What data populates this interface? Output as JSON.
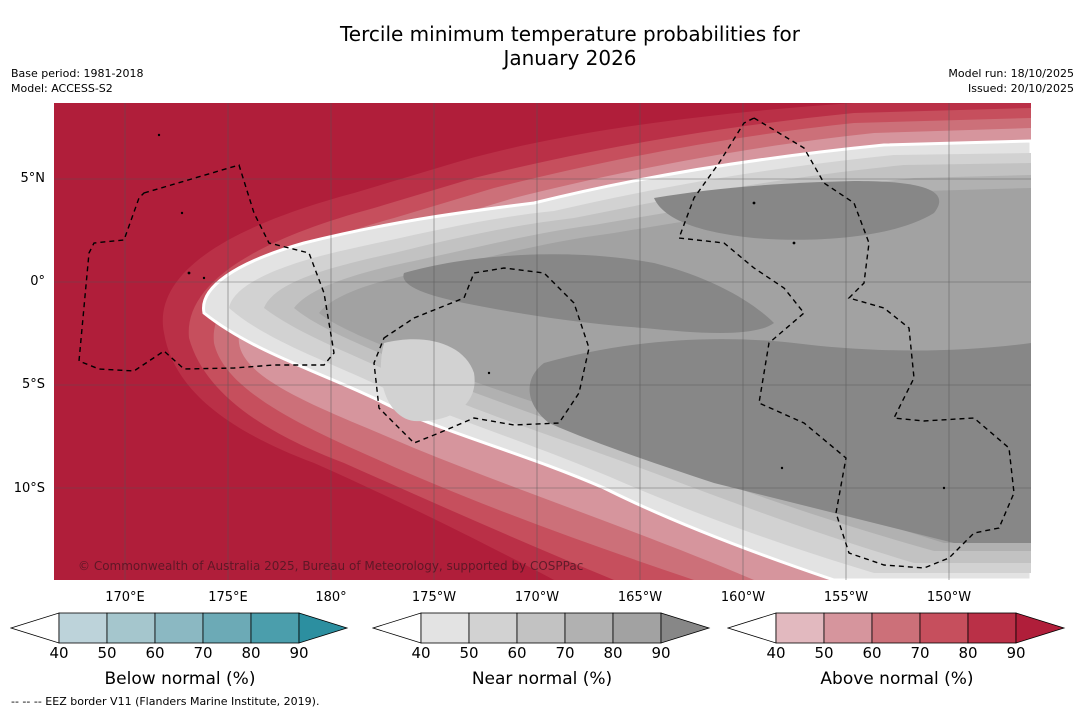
{
  "header": {
    "title_line1": "Tercile minimum temperature probabilities for",
    "title_line2": "January 2026",
    "base_period": "Base period: 1981-2018",
    "model": "Model: ACCESS-S2",
    "model_run": "Model run: 18/10/2025",
    "issued": "Issued: 20/10/2025"
  },
  "map": {
    "copyright": "© Commonwealth of Australia 2025, Bureau of Meteorology, supported by COSPPac",
    "lat_labels": [
      "5°N",
      "0°",
      "5°S",
      "10°S"
    ],
    "lon_labels": [
      "170°E",
      "175°E",
      "180°",
      "175°W",
      "170°W",
      "165°W",
      "160°W",
      "155°W",
      "150°W"
    ]
  },
  "colorbars": [
    {
      "title": "Below normal (%)",
      "ticks": [
        "40",
        "50",
        "60",
        "70",
        "80",
        "90"
      ],
      "colors": [
        "#ffffff",
        "#bdd3da",
        "#a5c6cd",
        "#8bb8c2",
        "#6caab6",
        "#4b9eac",
        "#2c8fa0"
      ]
    },
    {
      "title": "Near normal (%)",
      "ticks": [
        "40",
        "50",
        "60",
        "70",
        "80",
        "90"
      ],
      "colors": [
        "#ffffff",
        "#e3e3e3",
        "#d2d2d2",
        "#c2c2c2",
        "#b1b1b1",
        "#a2a2a2",
        "#878787"
      ]
    },
    {
      "title": "Above normal (%)",
      "ticks": [
        "40",
        "50",
        "60",
        "70",
        "80",
        "90"
      ],
      "colors": [
        "#ffffff",
        "#e2b9bf",
        "#d6959d",
        "#cc7079",
        "#c64f5d",
        "#ba3047",
        "#b01e3a"
      ]
    }
  ],
  "footer": {
    "eez_note": "--  --  -- EEZ border V11 (Flanders Marine Institute, 2019)."
  }
}
